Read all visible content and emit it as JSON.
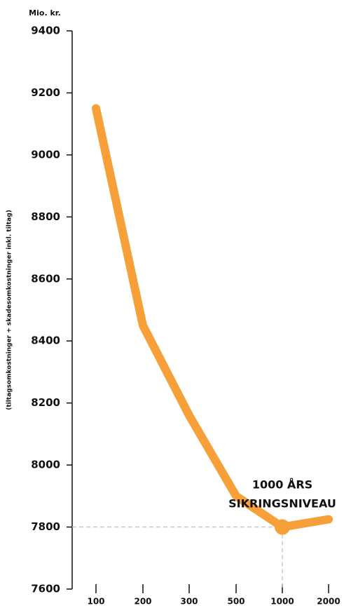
{
  "chart_data": {
    "type": "line",
    "unit_label": "Mio. kr.",
    "y_label": "(tiltagsomkostninger + skadesomkostninger inkl. tiltag)",
    "categories": [
      "100",
      "200",
      "300",
      "500",
      "1000",
      "2000"
    ],
    "series": [
      {
        "color": "#f7a03a",
        "values": [
          9150,
          8450,
          8160,
          7900,
          7800,
          7825
        ]
      }
    ],
    "ylim": [
      7600,
      9400
    ],
    "yticks": [
      7600,
      7800,
      8000,
      8200,
      8400,
      8600,
      8800,
      9000,
      9200,
      9400
    ],
    "highlight": "1000",
    "annotation": [
      "1000 ÅRS",
      "SIKRINGSNIVEAU"
    ]
  }
}
